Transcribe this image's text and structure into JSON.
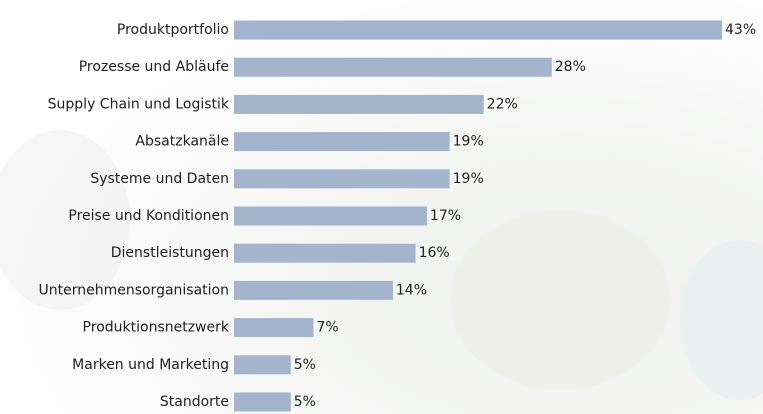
{
  "chart_data": {
    "type": "hbar",
    "categories": [
      "Produktportfolio",
      "Prozesse und Abläufe",
      "Supply Chain und Logistik",
      "Absatzkanäle",
      "Systeme und Daten",
      "Preise und Konditionen",
      "Dienstleistungen",
      "Unternehmensorganisation",
      "Produktionsnetzwerk",
      "Marken und Marketing",
      "Standorte"
    ],
    "values": [
      43,
      28,
      22,
      19,
      19,
      17,
      16,
      14,
      7,
      5,
      5
    ],
    "value_labels": [
      "43%",
      "28%",
      "22%",
      "19%",
      "19%",
      "17%",
      "16%",
      "14%",
      "7%",
      "5%",
      "5%"
    ],
    "color": "#a3b4cc"
  }
}
